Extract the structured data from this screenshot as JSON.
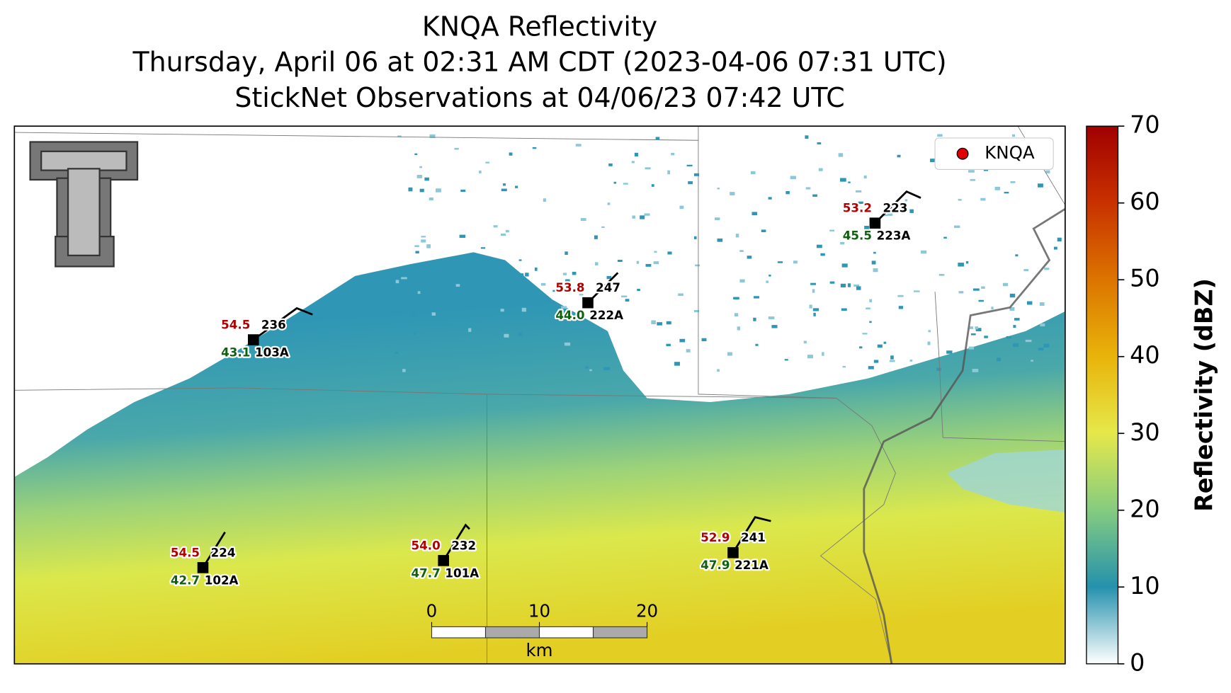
{
  "title": {
    "line1": "KNQA Reflectivity",
    "line2": "Thursday, April 06 at 02:31 AM CDT (2023-04-06 07:31 UTC)",
    "line3": "StickNet Observations at 04/06/23 07:42 UTC"
  },
  "legend": {
    "label": "KNQA",
    "color": "#e00000"
  },
  "colorbar": {
    "label": "Reflectivity (dBZ)",
    "lim": [
      0,
      70
    ],
    "ticks": [
      0,
      10,
      20,
      30,
      40,
      50,
      60,
      70
    ]
  },
  "scale_bar": {
    "ticks": [
      0,
      10,
      20
    ],
    "unit": "km"
  },
  "stations": [
    {
      "id": "103A",
      "temperature": "54.5",
      "dewpoint": "43.1",
      "value": "236"
    },
    {
      "id": "222A",
      "temperature": "53.8",
      "dewpoint": "44.0",
      "value": "247"
    },
    {
      "id": "223A",
      "temperature": "53.2",
      "dewpoint": "45.5",
      "value": "223"
    },
    {
      "id": "102A",
      "temperature": "54.5",
      "dewpoint": "42.7",
      "value": "224"
    },
    {
      "id": "101A",
      "temperature": "54.0",
      "dewpoint": "47.7",
      "value": "232"
    },
    {
      "id": "221A",
      "temperature": "52.9",
      "dewpoint": "47.9",
      "value": "241"
    }
  ]
}
